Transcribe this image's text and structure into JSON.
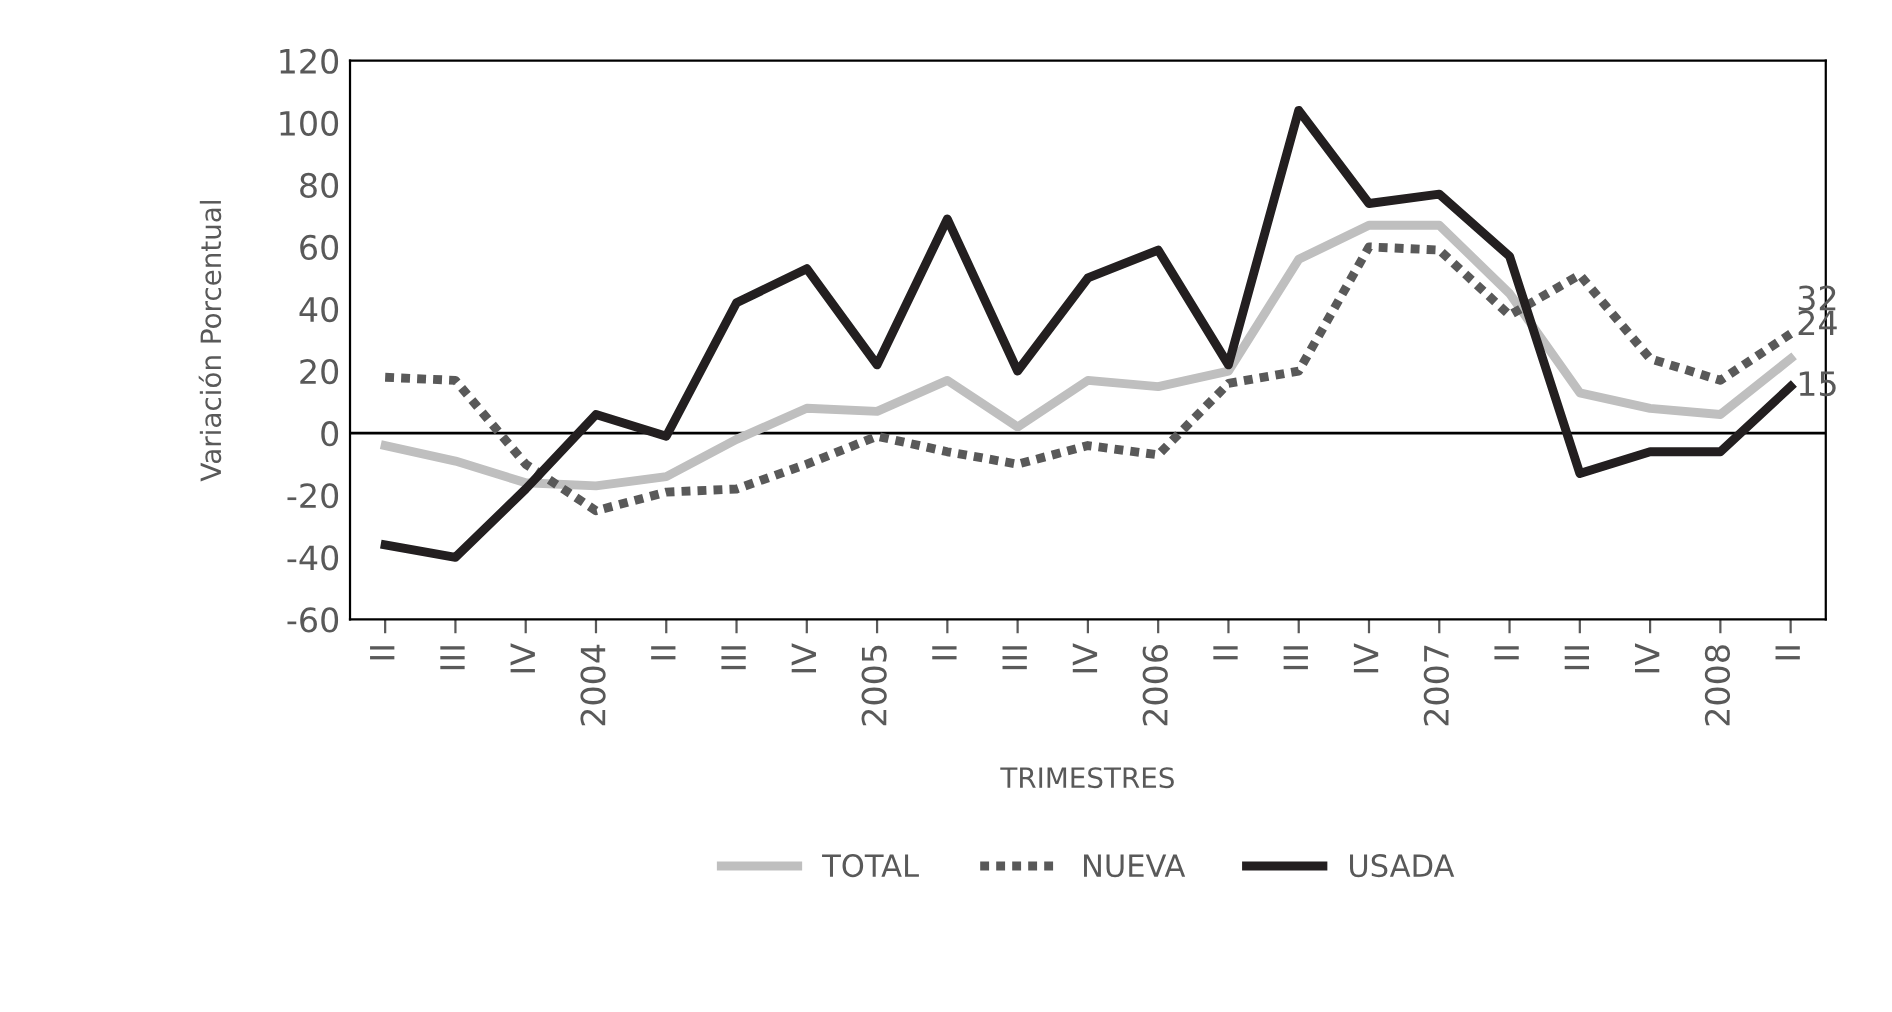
{
  "chart_data": {
    "type": "line",
    "xlabel": "TRIMESTRES",
    "ylabel": "Variación Porcentual",
    "categories": [
      "II",
      "III",
      "IV",
      "2004",
      "II",
      "III",
      "IV",
      "2005",
      "II",
      "III",
      "IV",
      "2006",
      "II",
      "III",
      "IV",
      "2007",
      "II",
      "III",
      "IV",
      "2008",
      "II"
    ],
    "series": [
      {
        "name": "TOTAL",
        "color": "#bfbfbf",
        "line_style": "solid",
        "values": [
          -4,
          -9,
          -16,
          -17,
          -14,
          -2,
          8,
          7,
          17,
          2,
          17,
          15,
          20,
          56,
          67,
          67,
          45,
          13,
          8,
          6,
          24
        ],
        "value_labels": [
          null,
          null,
          null,
          null,
          null,
          null,
          null,
          null,
          null,
          null,
          null,
          null,
          null,
          null,
          null,
          null,
          null,
          null,
          null,
          null,
          "24"
        ]
      },
      {
        "name": "NUEVA",
        "color": "#595959",
        "line_style": "dotted",
        "values": [
          18,
          17,
          -10,
          -25,
          -19,
          -18,
          -10,
          -1,
          -6,
          -10,
          -4,
          -7,
          16,
          20,
          60,
          59,
          38,
          51,
          24,
          17,
          32
        ],
        "value_labels": [
          null,
          null,
          null,
          null,
          null,
          null,
          null,
          null,
          null,
          null,
          null,
          null,
          null,
          null,
          null,
          null,
          null,
          null,
          null,
          null,
          "32"
        ]
      },
      {
        "name": "USADA",
        "color": "#231f20",
        "line_style": "solid",
        "values": [
          -36,
          -40,
          -18,
          6,
          -1,
          42,
          53,
          22,
          69,
          20,
          50,
          59,
          22,
          104,
          74,
          77,
          57,
          -13,
          -6,
          -6,
          15
        ],
        "value_labels": [
          null,
          null,
          null,
          null,
          null,
          null,
          null,
          null,
          null,
          null,
          null,
          null,
          null,
          null,
          null,
          null,
          null,
          null,
          null,
          null,
          "15"
        ]
      }
    ],
    "ylim": [
      -60,
      120
    ],
    "yticks": [
      -60,
      -40,
      -20,
      0,
      20,
      40,
      60,
      80,
      100,
      120
    ],
    "ref_lines": [
      {
        "axis": "y",
        "value": 0,
        "color": "#000000"
      }
    ],
    "grid": false,
    "legend": "bottom",
    "marker": "none"
  }
}
